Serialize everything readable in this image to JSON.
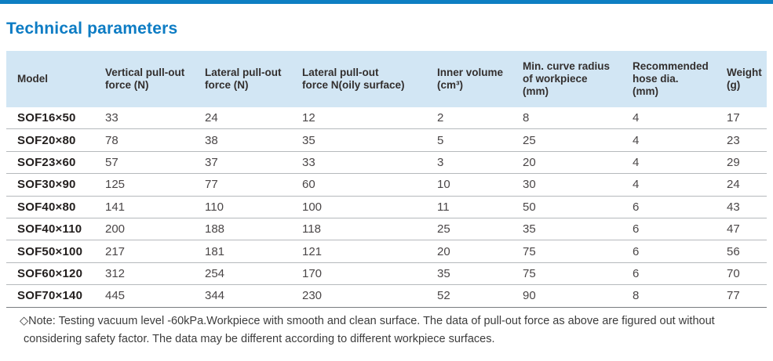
{
  "page": {
    "title": "Technical parameters",
    "accent_color": "#0e7fc3",
    "header_bg_color": "#d2e6f4",
    "title_color": "#0d7cc4"
  },
  "table": {
    "columns": [
      "Model",
      "Vertical pull-out\nforce (N)",
      "Lateral pull-out\nforce (N)",
      "Lateral pull-out\nforce N(oily surface)",
      "Inner volume\n(cm³)",
      "Min. curve radius\nof workpiece\n(mm)",
      "Recommended\nhose dia.\n(mm)",
      "Weight\n(g)"
    ],
    "rows": [
      [
        "SOF16×50",
        "33",
        "24",
        "12",
        "2",
        "8",
        "4",
        "17"
      ],
      [
        "SOF20×80",
        "78",
        "38",
        "35",
        "5",
        "25",
        "4",
        "23"
      ],
      [
        "SOF23×60",
        "57",
        "37",
        "33",
        "3",
        "20",
        "4",
        "29"
      ],
      [
        "SOF30×90",
        "125",
        "77",
        "60",
        "10",
        "30",
        "4",
        "24"
      ],
      [
        "SOF40×80",
        "141",
        "110",
        "100",
        "11",
        "50",
        "6",
        "43"
      ],
      [
        "SOF40×110",
        "200",
        "188",
        "118",
        "25",
        "35",
        "6",
        "47"
      ],
      [
        "SOF50×100",
        "217",
        "181",
        "121",
        "20",
        "75",
        "6",
        "56"
      ],
      [
        "SOF60×120",
        "312",
        "254",
        "170",
        "35",
        "75",
        "6",
        "70"
      ],
      [
        "SOF70×140",
        "445",
        "344",
        "230",
        "52",
        "90",
        "8",
        "77"
      ]
    ]
  },
  "note": {
    "line1": "◇Note: Testing vacuum level -60kPa.Workpiece with smooth and clean surface. The data of pull-out force as above are figured out without",
    "line2": "considering safety factor. The data may be  different according to different workpiece surfaces."
  }
}
